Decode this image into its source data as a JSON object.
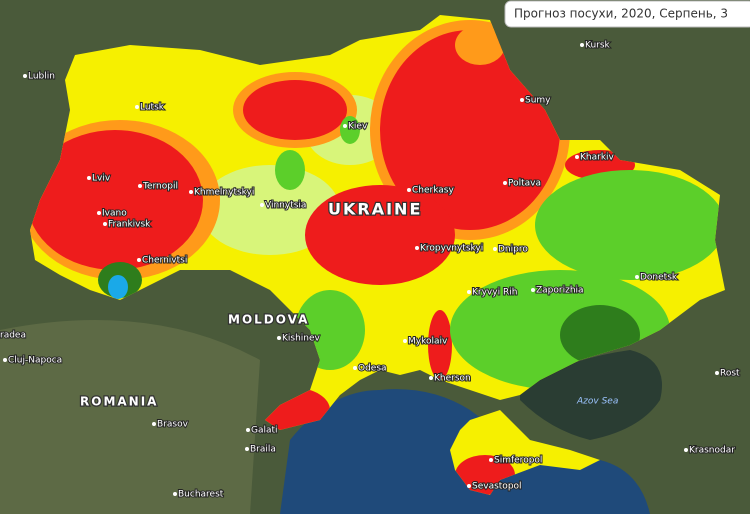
{
  "map": {
    "title": "Прогноз посухи, 2020, Серпень, 3",
    "countries": [
      "UKRAINE",
      "MOLDOVA",
      "ROMANIA"
    ],
    "seas": [
      "Azov Sea"
    ],
    "cities": [
      "Lublin",
      "Lutsk",
      "Kiev",
      "Kursk",
      "Sumy",
      "Kharkiv",
      "Poltava",
      "Cherkasy",
      "Lviv",
      "Ternopil",
      "Khmelnytskyi",
      "Vinnytsia",
      "Ivano",
      "Frankivsk",
      "Chernivtsi",
      "Kropyvnytskyi",
      "Dnipro",
      "Kryvyi Rih",
      "Zaporizhia",
      "Donetsk",
      "Kishinev",
      "Mykolaiv",
      "Odesa",
      "Kherson",
      "Cluj-Napoca",
      "Brasov",
      "Galati",
      "Braila",
      "Bucharest",
      "Simferopol",
      "Sevastopol",
      "Krasnodar",
      "Rost",
      "radea"
    ]
  }
}
